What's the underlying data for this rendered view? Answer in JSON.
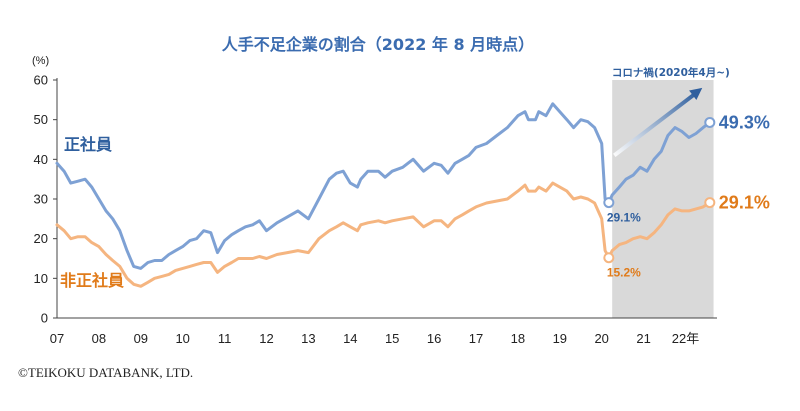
{
  "chart_data": {
    "type": "line",
    "title": "人手不足企業の割合（2022 年 8 月時点）",
    "ylabel": "(%)",
    "xlabel": "",
    "ylim": [
      0,
      60
    ],
    "yticks": [
      "0",
      "10",
      "20",
      "30",
      "40",
      "50",
      "60"
    ],
    "xticks": [
      "07",
      "08",
      "09",
      "10",
      "11",
      "12",
      "13",
      "14",
      "15",
      "16",
      "17",
      "18",
      "19",
      "20",
      "21",
      "22年"
    ],
    "grid": false,
    "legend": "inline",
    "shaded_region": {
      "start": 20.25,
      "end": 22.67,
      "label": "コロナ禍(2020年4月~)"
    },
    "series": [
      {
        "name": "正社員",
        "color": "#7ea1d4",
        "end_color": "#3b6cb0",
        "x": [
          7.0,
          7.17,
          7.33,
          7.5,
          7.67,
          7.83,
          8.0,
          8.17,
          8.33,
          8.5,
          8.67,
          8.83,
          9.0,
          9.17,
          9.33,
          9.5,
          9.67,
          9.83,
          10.0,
          10.17,
          10.33,
          10.5,
          10.67,
          10.83,
          11.0,
          11.17,
          11.33,
          11.5,
          11.67,
          11.83,
          12.0,
          12.25,
          12.5,
          12.75,
          13.0,
          13.25,
          13.5,
          13.67,
          13.83,
          14.0,
          14.17,
          14.25,
          14.42,
          14.67,
          14.83,
          15.0,
          15.25,
          15.5,
          15.75,
          16.0,
          16.17,
          16.33,
          16.5,
          16.67,
          16.83,
          17.0,
          17.25,
          17.5,
          17.75,
          18.0,
          18.17,
          18.25,
          18.42,
          18.5,
          18.67,
          18.83,
          19.0,
          19.17,
          19.33,
          19.5,
          19.67,
          19.83,
          20.0,
          20.08,
          20.17,
          20.25,
          20.42,
          20.58,
          20.75,
          20.92,
          21.08,
          21.25,
          21.42,
          21.58,
          21.75,
          21.92,
          22.08,
          22.25,
          22.42,
          22.58
        ],
        "values": [
          39,
          37,
          34,
          34.5,
          35,
          33,
          30,
          27,
          25,
          22,
          17,
          13,
          12.5,
          14,
          14.5,
          14.5,
          16,
          17,
          18,
          19.5,
          20,
          22,
          21.5,
          16.5,
          19.5,
          21,
          22,
          23,
          23.5,
          24.5,
          22,
          24,
          25.5,
          27,
          25,
          30,
          35,
          36.5,
          37,
          34,
          33,
          35,
          37,
          37,
          35.5,
          37,
          38,
          40,
          37,
          39,
          38.5,
          36.5,
          39,
          40,
          41,
          43,
          44,
          46,
          48,
          51,
          52,
          50,
          50,
          52,
          51,
          54,
          52,
          50,
          48,
          50,
          49.5,
          48,
          44,
          30,
          29.1,
          31,
          33,
          35,
          36,
          38,
          37,
          40,
          42,
          46,
          48,
          47,
          45.5,
          46.5,
          48,
          49.3
        ]
      },
      {
        "name": "非正社員",
        "color": "#f5b580",
        "end_color": "#e07b1a",
        "x": [
          7.0,
          7.17,
          7.33,
          7.5,
          7.67,
          7.83,
          8.0,
          8.17,
          8.33,
          8.5,
          8.67,
          8.83,
          9.0,
          9.17,
          9.33,
          9.5,
          9.67,
          9.83,
          10.0,
          10.17,
          10.33,
          10.5,
          10.67,
          10.83,
          11.0,
          11.17,
          11.33,
          11.5,
          11.67,
          11.83,
          12.0,
          12.25,
          12.5,
          12.75,
          13.0,
          13.25,
          13.5,
          13.67,
          13.83,
          14.0,
          14.17,
          14.25,
          14.42,
          14.67,
          14.83,
          15.0,
          15.25,
          15.5,
          15.75,
          16.0,
          16.17,
          16.33,
          16.5,
          16.67,
          16.83,
          17.0,
          17.25,
          17.5,
          17.75,
          18.0,
          18.17,
          18.25,
          18.42,
          18.5,
          18.67,
          18.83,
          19.0,
          19.17,
          19.33,
          19.5,
          19.67,
          19.83,
          20.0,
          20.08,
          20.17,
          20.25,
          20.42,
          20.58,
          20.75,
          20.92,
          21.08,
          21.25,
          21.42,
          21.58,
          21.75,
          21.92,
          22.08,
          22.25,
          22.42,
          22.58
        ],
        "values": [
          23.5,
          22,
          20,
          20.5,
          20.5,
          19,
          18,
          16,
          14.5,
          13,
          10,
          8.5,
          8,
          9,
          10,
          10.5,
          11,
          12,
          12.5,
          13,
          13.5,
          14,
          14,
          11.5,
          13,
          14,
          15,
          15,
          15,
          15.5,
          15,
          16,
          16.5,
          17,
          16.5,
          20,
          22,
          23,
          24,
          23,
          22,
          23.5,
          24,
          24.5,
          24,
          24.5,
          25,
          25.5,
          23,
          24.5,
          24.5,
          23,
          25,
          26,
          27,
          28,
          29,
          29.5,
          30,
          32,
          33.5,
          32,
          32,
          33,
          32,
          34,
          33,
          32,
          30,
          30.5,
          30,
          29,
          25,
          17,
          15.2,
          17,
          18.5,
          19,
          20,
          20.5,
          20,
          21.5,
          23.5,
          26,
          27.5,
          27,
          27,
          27.5,
          28,
          29.1
        ]
      }
    ],
    "annotations": [
      "29.1%",
      "15.2%",
      "49.3%",
      "29.1%"
    ]
  },
  "labels": {
    "series_1": "正社員",
    "series_2": "非正社員",
    "end_1": "49.3%",
    "end_2": "29.1%",
    "point_1": "29.1%",
    "point_2": "15.2%"
  },
  "footer": {
    "credit": "©TEIKOKU DATABANK, LTD."
  }
}
